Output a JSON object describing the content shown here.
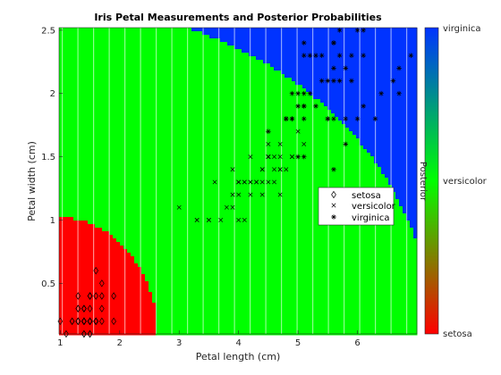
{
  "chart_data": {
    "type": "scatter",
    "title": "Iris Petal Measurements and Posterior Probabilities",
    "xlabel": "Petal length (cm)",
    "ylabel": "Petal width (cm)",
    "xlim": [
      0.98,
      7.0
    ],
    "ylim": [
      0.1,
      2.52
    ],
    "xticks": [
      1,
      2,
      3,
      4,
      5,
      6
    ],
    "yticks": [
      0.5,
      1,
      1.5,
      2,
      2.5
    ],
    "xtick_labels": [
      "1",
      "2",
      "3",
      "4",
      "5",
      "6"
    ],
    "ytick_labels": [
      "0.5",
      "1",
      "1.5",
      "2",
      "2.5"
    ],
    "background": "posterior probability map (red = setosa, green = versicolor, blue = virginica)",
    "colors": {
      "setosa": "#ff0000",
      "versicolor": "#00ff00",
      "virginica": "#0033ff"
    },
    "legend": {
      "position": "center-right",
      "entries": [
        {
          "label": "setosa",
          "marker": "diamond"
        },
        {
          "label": "versicolor",
          "marker": "x"
        },
        {
          "label": "virginica",
          "marker": "star"
        }
      ]
    },
    "colorbar": {
      "label": "Posterior",
      "top_label": "virginica",
      "middle_label": "versicolor",
      "bottom_label": "setosa"
    },
    "series": [
      {
        "name": "setosa",
        "marker": "diamond",
        "points": [
          [
            1.4,
            0.2
          ],
          [
            1.4,
            0.2
          ],
          [
            1.3,
            0.2
          ],
          [
            1.5,
            0.2
          ],
          [
            1.4,
            0.2
          ],
          [
            1.7,
            0.4
          ],
          [
            1.4,
            0.3
          ],
          [
            1.5,
            0.2
          ],
          [
            1.4,
            0.2
          ],
          [
            1.5,
            0.1
          ],
          [
            1.5,
            0.2
          ],
          [
            1.6,
            0.2
          ],
          [
            1.4,
            0.1
          ],
          [
            1.1,
            0.1
          ],
          [
            1.2,
            0.2
          ],
          [
            1.5,
            0.4
          ],
          [
            1.3,
            0.4
          ],
          [
            1.4,
            0.3
          ],
          [
            1.7,
            0.3
          ],
          [
            1.5,
            0.3
          ],
          [
            1.7,
            0.2
          ],
          [
            1.5,
            0.4
          ],
          [
            1.0,
            0.2
          ],
          [
            1.7,
            0.5
          ],
          [
            1.9,
            0.2
          ],
          [
            1.6,
            0.2
          ],
          [
            1.6,
            0.4
          ],
          [
            1.5,
            0.2
          ],
          [
            1.4,
            0.2
          ],
          [
            1.6,
            0.2
          ],
          [
            1.6,
            0.2
          ],
          [
            1.5,
            0.4
          ],
          [
            1.5,
            0.1
          ],
          [
            1.4,
            0.2
          ],
          [
            1.5,
            0.2
          ],
          [
            1.2,
            0.2
          ],
          [
            1.3,
            0.2
          ],
          [
            1.4,
            0.1
          ],
          [
            1.3,
            0.2
          ],
          [
            1.5,
            0.2
          ],
          [
            1.3,
            0.3
          ],
          [
            1.3,
            0.3
          ],
          [
            1.3,
            0.2
          ],
          [
            1.6,
            0.6
          ],
          [
            1.9,
            0.4
          ],
          [
            1.4,
            0.3
          ],
          [
            1.6,
            0.2
          ],
          [
            1.4,
            0.2
          ],
          [
            1.5,
            0.2
          ],
          [
            1.4,
            0.2
          ]
        ]
      },
      {
        "name": "versicolor",
        "marker": "x",
        "points": [
          [
            4.7,
            1.4
          ],
          [
            4.5,
            1.5
          ],
          [
            4.9,
            1.5
          ],
          [
            4.0,
            1.3
          ],
          [
            4.6,
            1.5
          ],
          [
            4.5,
            1.3
          ],
          [
            4.7,
            1.6
          ],
          [
            3.3,
            1.0
          ],
          [
            4.6,
            1.3
          ],
          [
            3.9,
            1.4
          ],
          [
            3.5,
            1.0
          ],
          [
            4.2,
            1.5
          ],
          [
            4.0,
            1.0
          ],
          [
            4.7,
            1.4
          ],
          [
            3.6,
            1.3
          ],
          [
            4.4,
            1.4
          ],
          [
            4.5,
            1.5
          ],
          [
            4.1,
            1.0
          ],
          [
            4.5,
            1.5
          ],
          [
            3.9,
            1.1
          ],
          [
            4.8,
            1.8
          ],
          [
            4.0,
            1.3
          ],
          [
            4.9,
            1.5
          ],
          [
            4.7,
            1.2
          ],
          [
            4.3,
            1.3
          ],
          [
            4.4,
            1.4
          ],
          [
            4.8,
            1.4
          ],
          [
            5.0,
            1.7
          ],
          [
            4.5,
            1.5
          ],
          [
            3.5,
            1.0
          ],
          [
            3.8,
            1.1
          ],
          [
            3.7,
            1.0
          ],
          [
            3.9,
            1.2
          ],
          [
            5.1,
            1.6
          ],
          [
            4.5,
            1.5
          ],
          [
            4.5,
            1.6
          ],
          [
            4.7,
            1.5
          ],
          [
            4.4,
            1.3
          ],
          [
            4.1,
            1.3
          ],
          [
            4.0,
            1.3
          ],
          [
            4.4,
            1.2
          ],
          [
            4.6,
            1.4
          ],
          [
            4.0,
            1.2
          ],
          [
            3.3,
            1.0
          ],
          [
            4.2,
            1.3
          ],
          [
            4.2,
            1.2
          ],
          [
            4.2,
            1.3
          ],
          [
            4.3,
            1.3
          ],
          [
            3.0,
            1.1
          ],
          [
            4.1,
            1.3
          ]
        ]
      },
      {
        "name": "virginica",
        "marker": "star",
        "points": [
          [
            6.0,
            2.5
          ],
          [
            5.1,
            1.9
          ],
          [
            5.9,
            2.1
          ],
          [
            5.6,
            1.8
          ],
          [
            5.8,
            2.2
          ],
          [
            6.6,
            2.1
          ],
          [
            4.5,
            1.7
          ],
          [
            6.3,
            1.8
          ],
          [
            5.8,
            1.8
          ],
          [
            6.1,
            2.5
          ],
          [
            5.1,
            2.0
          ],
          [
            5.3,
            1.9
          ],
          [
            5.5,
            2.1
          ],
          [
            5.0,
            2.0
          ],
          [
            5.1,
            2.4
          ],
          [
            5.3,
            2.3
          ],
          [
            5.5,
            1.8
          ],
          [
            6.7,
            2.2
          ],
          [
            6.9,
            2.3
          ],
          [
            5.0,
            1.5
          ],
          [
            5.7,
            2.3
          ],
          [
            4.9,
            2.0
          ],
          [
            6.7,
            2.0
          ],
          [
            4.9,
            1.8
          ],
          [
            5.7,
            2.1
          ],
          [
            6.0,
            1.8
          ],
          [
            4.8,
            1.8
          ],
          [
            4.9,
            1.8
          ],
          [
            5.6,
            2.1
          ],
          [
            5.8,
            1.6
          ],
          [
            6.1,
            1.9
          ],
          [
            6.4,
            2.0
          ],
          [
            5.6,
            2.2
          ],
          [
            5.1,
            1.5
          ],
          [
            5.6,
            1.4
          ],
          [
            6.1,
            2.3
          ],
          [
            5.6,
            2.4
          ],
          [
            5.5,
            1.8
          ],
          [
            4.8,
            1.8
          ],
          [
            5.4,
            2.1
          ],
          [
            5.6,
            2.4
          ],
          [
            5.1,
            2.3
          ],
          [
            5.1,
            1.9
          ],
          [
            5.9,
            2.3
          ],
          [
            5.7,
            2.5
          ],
          [
            5.2,
            2.3
          ],
          [
            5.0,
            1.9
          ],
          [
            5.2,
            2.0
          ],
          [
            5.4,
            2.3
          ],
          [
            5.1,
            1.8
          ]
        ]
      }
    ]
  }
}
